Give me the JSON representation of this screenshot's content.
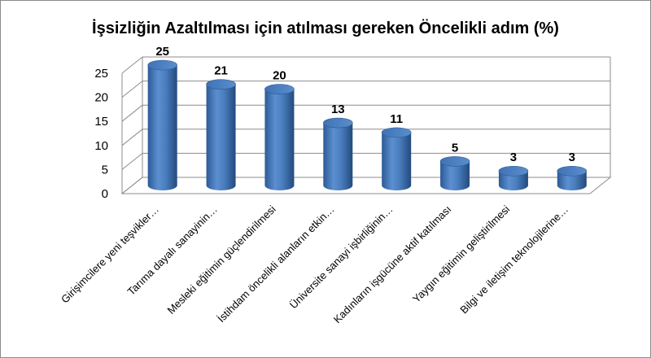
{
  "chart_data": {
    "type": "bar",
    "title": "İşsizliğin Azaltılması için atılması gereken Öncelikli adım (%)",
    "categories": [
      "Girişimcilere yeni teşvikler…",
      "Tarıma dayalı sanayinin…",
      "Mesleki eğitimin güçlendirilmesi",
      "İstihdam öncelikli alanların etkin…",
      "Üniversite sanayi işbirliğinin…",
      "Kadınların işgücüne aktif katılması",
      "Yaygın eğitimin geliştirilmesi",
      "Bilgi ve iletişim teknolojilerine…"
    ],
    "series": [
      {
        "values": [
          25,
          21,
          20,
          13,
          11,
          5,
          3,
          3
        ]
      }
    ],
    "ylim": [
      0,
      25
    ],
    "yticks": [
      "0",
      "5",
      "10",
      "15",
      "20",
      "25"
    ],
    "grid": true,
    "style": "3d-cylinder",
    "bar_color": "#4a7ebf"
  }
}
